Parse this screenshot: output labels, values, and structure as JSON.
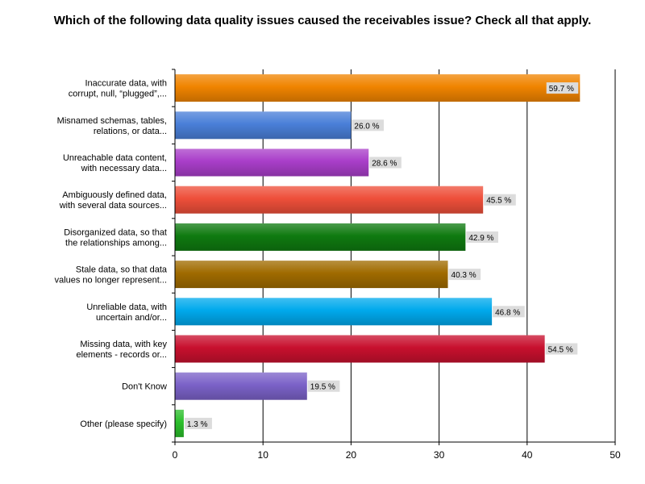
{
  "chart_data": {
    "type": "bar",
    "orientation": "horizontal",
    "title": "Which of the following data quality issues caused the receivables issue? Check all that apply.",
    "categories": [
      [
        "Inaccurate data, with",
        "corrupt, null, “plugged”,..."
      ],
      [
        "Misnamed schemas, tables,",
        "relations, or data..."
      ],
      [
        "Unreachable data content,",
        "with necessary data..."
      ],
      [
        "Ambiguously defined data,",
        "with several data sources..."
      ],
      [
        "Disorganized data, so that",
        "the relationships among..."
      ],
      [
        "Stale data, so that data",
        "values no longer represent..."
      ],
      [
        "Unreliable data, with",
        "uncertain and/or..."
      ],
      [
        "Missing data, with key",
        "elements - records  or..."
      ],
      [
        "Don't Know"
      ],
      [
        "Other (please specify)"
      ]
    ],
    "values": [
      46,
      20,
      22,
      35,
      33,
      31,
      36,
      42,
      15,
      1
    ],
    "data_labels": [
      "59.7 %",
      "26.0 %",
      "28.6 %",
      "45.5 %",
      "42.9 %",
      "40.3 %",
      "46.8 %",
      "54.5 %",
      "19.5 %",
      "1.3 %"
    ],
    "colors": [
      "#f08400",
      "#4a7fd8",
      "#a93ec9",
      "#ee4f3a",
      "#0f7a10",
      "#a06b00",
      "#00a9ec",
      "#c8102e",
      "#7b62c8",
      "#2bbf2b"
    ],
    "xlim": [
      0,
      50
    ],
    "xticks": [
      "0",
      "10",
      "20",
      "30",
      "40",
      "50"
    ],
    "grid": true
  }
}
